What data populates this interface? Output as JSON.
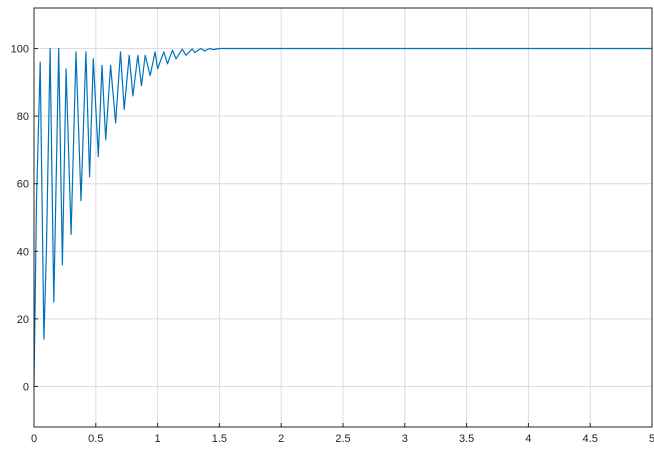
{
  "chart_data": {
    "type": "line",
    "title": "",
    "xlabel": "",
    "ylabel": "",
    "xlim": [
      0,
      5
    ],
    "ylim": [
      -12,
      112
    ],
    "x_ticks": [
      0,
      0.5,
      1,
      1.5,
      2,
      2.5,
      3,
      3.5,
      4,
      4.5,
      5
    ],
    "x_tick_labels": [
      "0",
      "0.5",
      "1",
      "1.5",
      "2",
      "2.5",
      "3",
      "3.5",
      "4",
      "4.5",
      "5"
    ],
    "y_ticks": [
      0,
      20,
      40,
      60,
      80,
      100
    ],
    "y_tick_labels": [
      "0",
      "20",
      "40",
      "60",
      "80",
      "100"
    ],
    "grid": true,
    "legend": "none",
    "series": [
      {
        "color": "#0072bd",
        "x": [
          0,
          0.02,
          0.05,
          0.08,
          0.1,
          0.13,
          0.16,
          0.2,
          0.23,
          0.26,
          0.3,
          0.34,
          0.38,
          0.42,
          0.45,
          0.48,
          0.52,
          0.55,
          0.58,
          0.62,
          0.66,
          0.7,
          0.73,
          0.77,
          0.8,
          0.84,
          0.87,
          0.9,
          0.94,
          0.98,
          1.0,
          1.05,
          1.08,
          1.12,
          1.15,
          1.2,
          1.23,
          1.28,
          1.3,
          1.35,
          1.38,
          1.42,
          1.45,
          1.5,
          1.55,
          1.6,
          1.7,
          2.0,
          2.5,
          3.0,
          3.5,
          4.0,
          4.5,
          5.0
        ],
        "y": [
          0,
          55,
          96,
          14,
          40,
          100,
          25,
          100,
          36,
          94,
          45,
          99,
          55,
          99,
          62,
          97,
          68,
          95,
          73,
          95,
          78,
          99,
          82,
          98,
          86,
          98,
          89,
          98,
          92,
          99,
          94,
          99,
          95.5,
          99.5,
          97,
          99.8,
          98,
          99.9,
          98.8,
          100,
          99.3,
          100,
          99.7,
          100,
          100,
          100,
          100,
          100,
          100,
          100,
          100,
          100,
          100,
          100
        ]
      }
    ]
  }
}
